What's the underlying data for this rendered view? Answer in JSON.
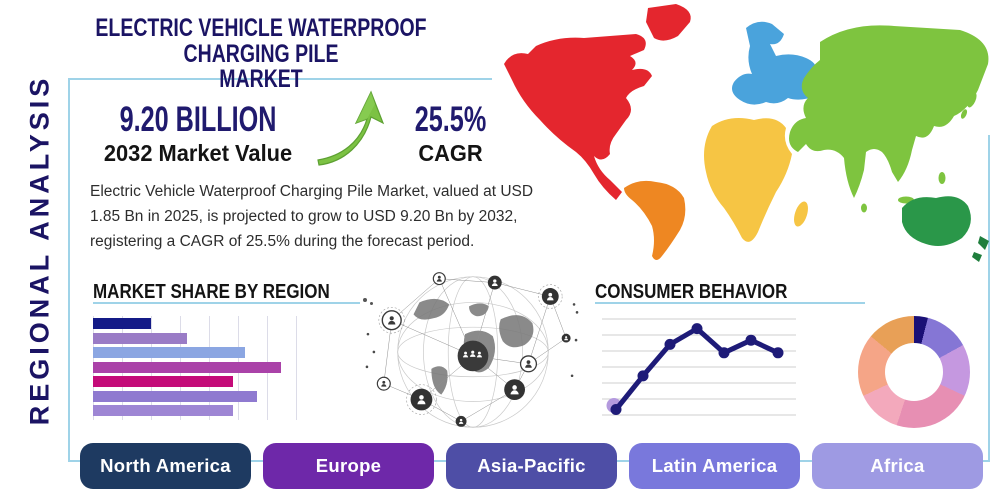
{
  "title": {
    "line1": "ELECTRIC VEHICLE WATERPROOF CHARGING PILE",
    "line2": "MARKET"
  },
  "sidebar": {
    "label": "REGIONAL ANALYSIS"
  },
  "stats": {
    "market_value": {
      "value": "9.20 BILLION",
      "label": "2032 Market Value"
    },
    "cagr": {
      "value": "25.5%",
      "label": "CAGR"
    }
  },
  "description": "Electric Vehicle Waterproof Charging Pile Market, valued at USD 1.85 Bn in 2025, is projected to grow to USD 9.20 Bn by 2032, registering a CAGR of 25.5% during the forecast period.",
  "accent_colors": {
    "title_navy": "#1b1464",
    "panel_border_blue": "#9fd3e8",
    "arrow_green": "#7cc243"
  },
  "map": {
    "continents": {
      "north-america": "#e4262e",
      "greenland": "#e4262e",
      "south-america": "#ee8722",
      "europe": "#4aa3dc",
      "africa": "#f6c544",
      "asia": "#7ec43f",
      "australia": "#2a9749",
      "new-zealand": "#1f7e3c"
    }
  },
  "chart_data": [
    {
      "type": "bar",
      "title": "MARKET SHARE BY REGION",
      "orientation": "horizontal",
      "categories_labeled": false,
      "values": [
        29,
        47,
        76,
        94,
        70,
        82,
        70
      ],
      "xlim": [
        0,
        100
      ],
      "grid": "vertical",
      "bar_colors": [
        "#141b87",
        "#9a7cc6",
        "#8ba6e2",
        "#aa42a8",
        "#c40b79",
        "#8f7ad0",
        "#9e86d4"
      ]
    },
    {
      "type": "line",
      "title": "CONSUMER BEHAVIOR",
      "x": [
        1,
        2,
        3,
        4,
        5,
        6,
        7
      ],
      "values": [
        10,
        42,
        72,
        87,
        64,
        76,
        64
      ],
      "ylim": [
        0,
        100
      ],
      "grid": "horizontal",
      "line_color": "#1e1b78",
      "first_point_halo_color": "#b49ade"
    },
    {
      "type": "pie",
      "subtype": "donut",
      "title": "",
      "slices": [
        {
          "value": 4,
          "color": "#1a1076"
        },
        {
          "value": 13,
          "color": "#8576d5"
        },
        {
          "value": 15,
          "color": "#c598e0"
        },
        {
          "value": 23,
          "color": "#e78fb3"
        },
        {
          "value": 13,
          "color": "#f3a9bc"
        },
        {
          "value": 18,
          "color": "#f5a587"
        },
        {
          "value": 14,
          "color": "#e8a057"
        }
      ]
    }
  ],
  "region_buttons": [
    {
      "label": "North America",
      "color": "#1e3a61"
    },
    {
      "label": "Europe",
      "color": "#6e28a9"
    },
    {
      "label": "Asia-Pacific",
      "color": "#4e4ea6"
    },
    {
      "label": "Latin America",
      "color": "#7978dc"
    },
    {
      "label": "Africa",
      "color": "#9e9ae3"
    }
  ]
}
